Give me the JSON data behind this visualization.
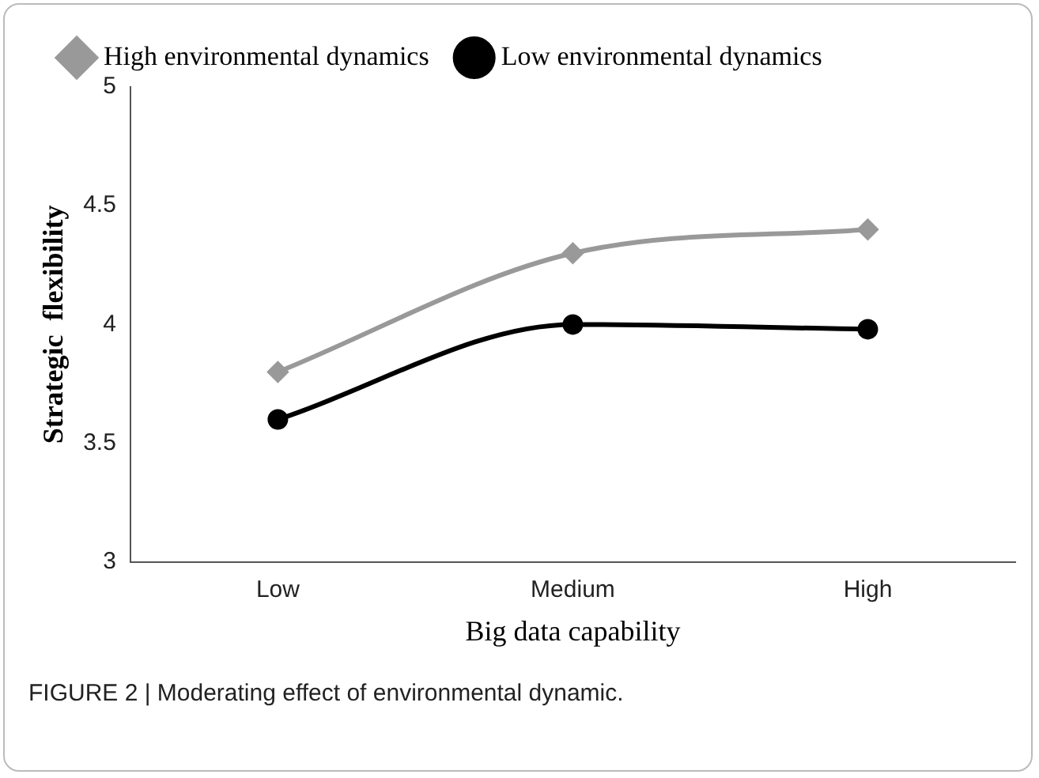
{
  "chart_data": {
    "type": "line",
    "xlabel": "Big data capability",
    "ylabel": "Strategic  flexibility",
    "categories": [
      "Low",
      "Medium",
      "High"
    ],
    "series": [
      {
        "name": "High environmental dynamics",
        "color": "#999999",
        "marker": "diamond",
        "values": [
          3.8,
          4.3,
          4.4
        ]
      },
      {
        "name": "Low environmental dynamics",
        "color": "#000000",
        "marker": "circle",
        "values": [
          3.6,
          4.0,
          3.98
        ]
      }
    ],
    "ylim": [
      3,
      5
    ],
    "yticks": [
      3,
      3.5,
      4,
      4.5,
      5
    ],
    "grid": false,
    "legend": "top",
    "line_style": "solid",
    "annotations": [
      "FIGURE 2 | Moderating effect of environmental dynamic."
    ]
  }
}
